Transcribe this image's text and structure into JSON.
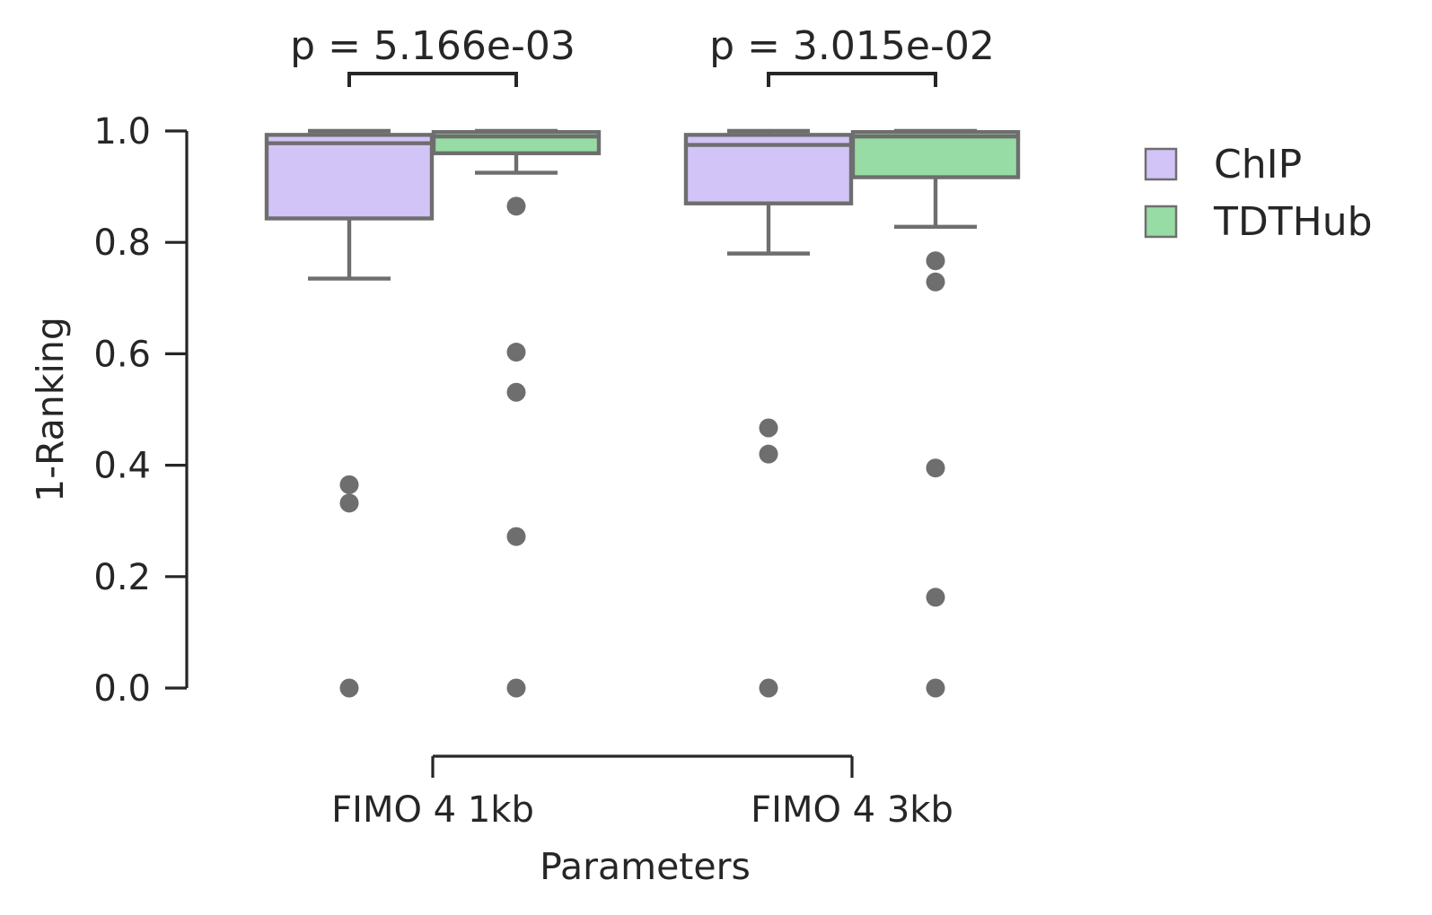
{
  "chart_data": {
    "type": "box",
    "xlabel": "Parameters",
    "ylabel": "1-Ranking",
    "ylim": [
      0.0,
      1.0
    ],
    "yticks": [
      0.0,
      0.2,
      0.4,
      0.6,
      0.8,
      1.0
    ],
    "ytick_labels": [
      "0.0",
      "0.2",
      "0.4",
      "0.6",
      "0.8",
      "1.0"
    ],
    "categories": [
      "FIMO 4 1kb",
      "FIMO 4 3kb"
    ],
    "legend": {
      "position": "upper-right-outside"
    },
    "series": [
      {
        "name": "ChIP",
        "color": "#d2c4f7",
        "boxes": [
          {
            "category": "FIMO 4 1kb",
            "whisker_low": 0.735,
            "q1": 0.843,
            "median": 0.978,
            "q3": 0.993,
            "whisker_high": 1.0,
            "outliers": [
              0.365,
              0.332,
              0.0
            ]
          },
          {
            "category": "FIMO 4 3kb",
            "whisker_low": 0.78,
            "q1": 0.87,
            "median": 0.975,
            "q3": 0.993,
            "whisker_high": 1.0,
            "outliers": [
              0.467,
              0.42,
              0.0
            ]
          }
        ]
      },
      {
        "name": "TDTHub",
        "color": "#98dca5",
        "boxes": [
          {
            "category": "FIMO 4 1kb",
            "whisker_low": 0.925,
            "q1": 0.96,
            "median": 0.99,
            "q3": 0.998,
            "whisker_high": 1.0,
            "outliers": [
              0.865,
              0.603,
              0.531,
              0.272,
              0.0
            ]
          },
          {
            "category": "FIMO 4 3kb",
            "whisker_low": 0.828,
            "q1": 0.917,
            "median": 0.99,
            "q3": 0.998,
            "whisker_high": 1.0,
            "outliers": [
              0.767,
              0.729,
              0.395,
              0.163,
              0.0
            ]
          }
        ]
      }
    ],
    "annotations": [
      {
        "category": "FIMO 4 1kb",
        "text": "p = 5.166e-03"
      },
      {
        "category": "FIMO 4 3kb",
        "text": "p = 3.015e-02"
      }
    ],
    "style": {
      "line_color": "#6e6e6e",
      "axis_color": "#262626",
      "text_color": "#262626"
    }
  }
}
